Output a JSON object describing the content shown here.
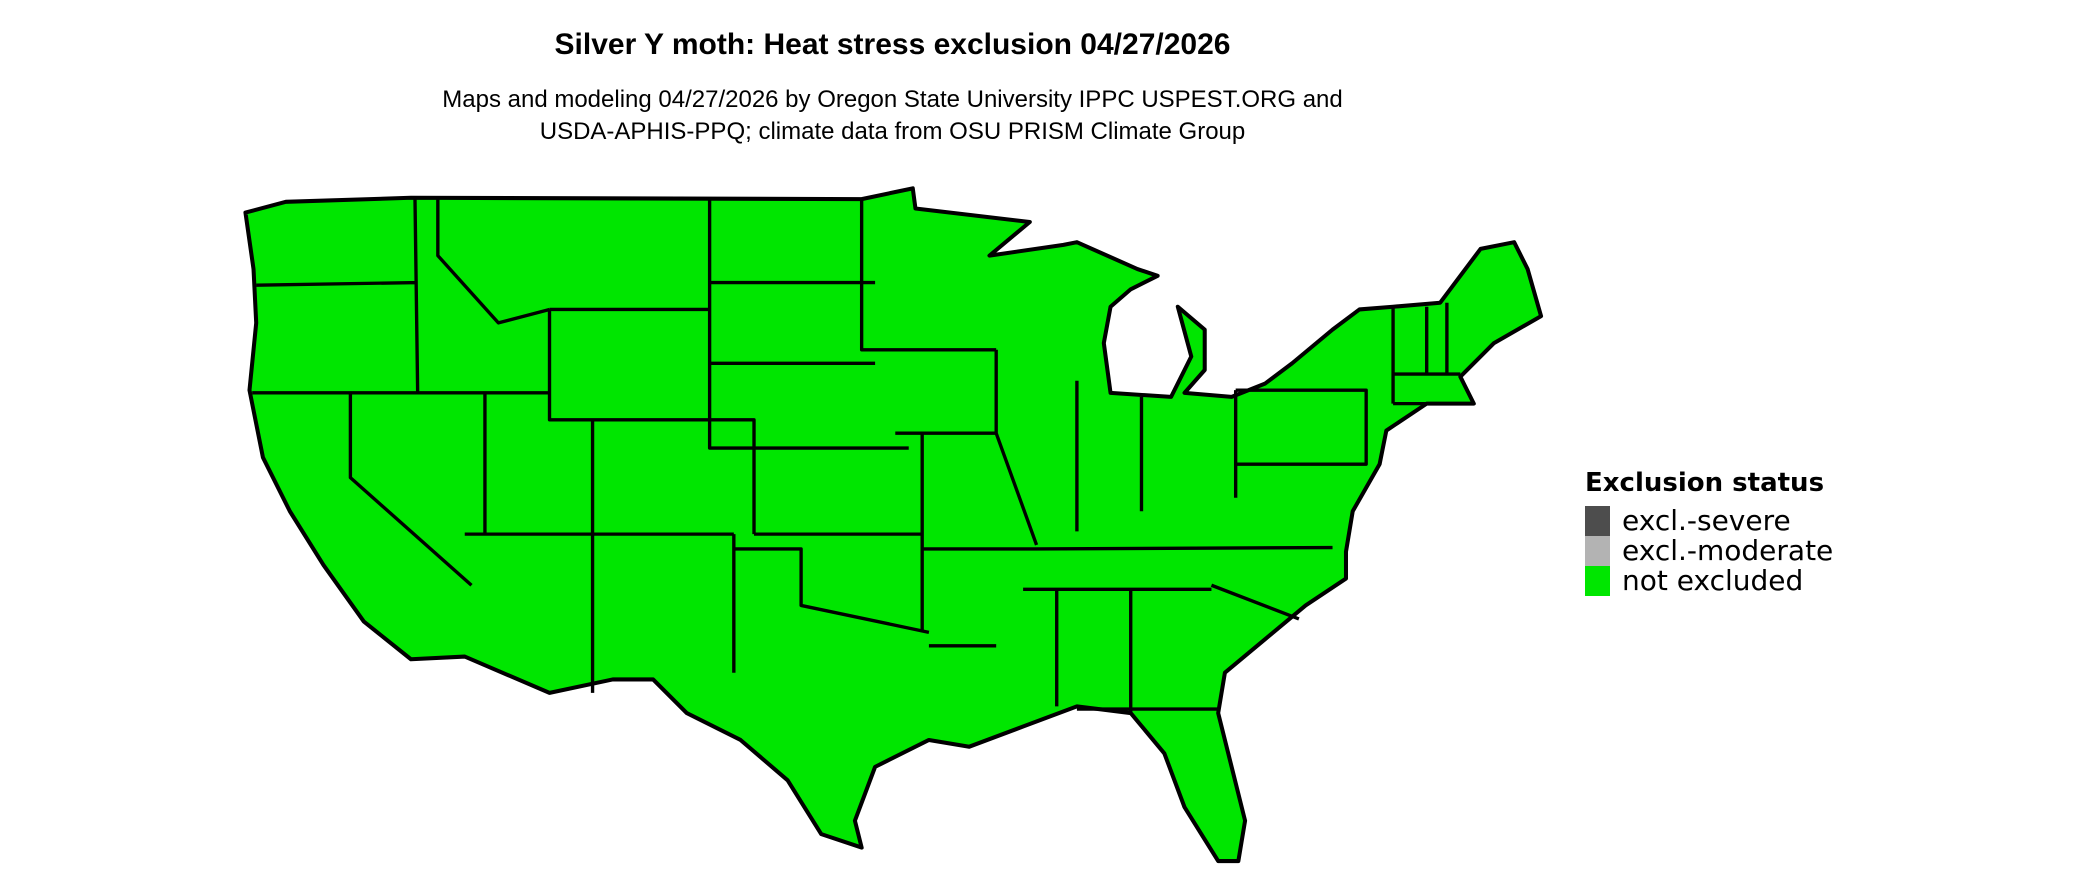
{
  "title": "Silver Y moth: Heat stress exclusion 04/27/2026",
  "subtitle_line1": "Maps and modeling 04/27/2026 by Oregon State University IPPC USPEST.ORG and",
  "subtitle_line2": "USDA-APHIS-PPQ; climate data from OSU PRISM Climate Group",
  "map": {
    "region": "Contiguous United States",
    "fill_color": "#00e600",
    "border_color": "#000000",
    "displayed_status": "not excluded"
  },
  "legend": {
    "title": "Exclusion status",
    "items": [
      {
        "label": "excl.-severe",
        "color": "#4d4d4d"
      },
      {
        "label": "excl.-moderate",
        "color": "#b3b3b3"
      },
      {
        "label": "not excluded",
        "color": "#00e600"
      }
    ]
  }
}
